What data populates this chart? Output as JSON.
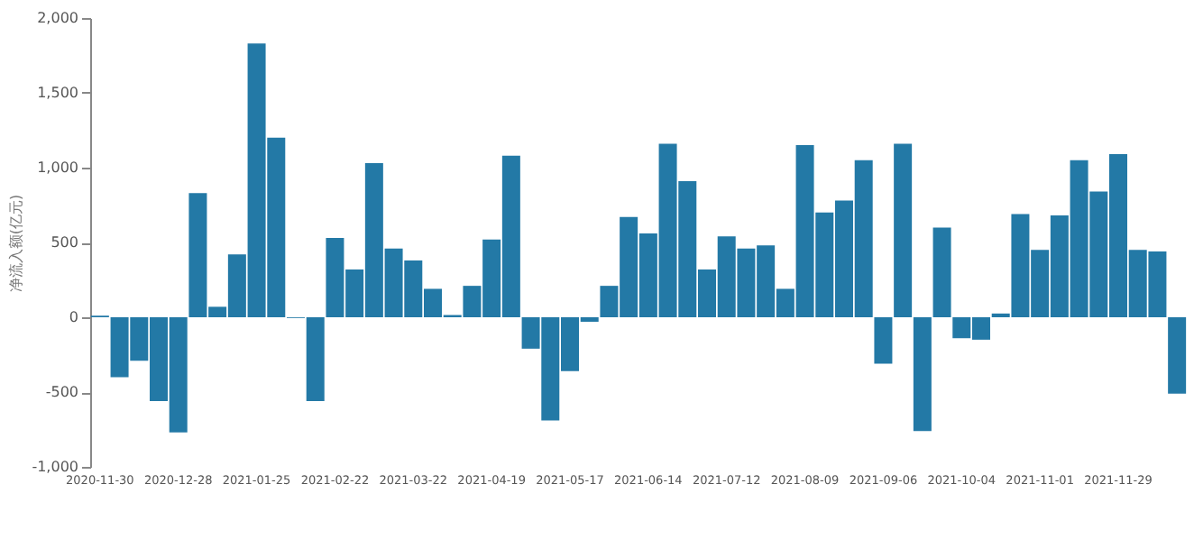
{
  "chart_data": {
    "type": "bar",
    "ylabel": "净流入额(亿元)",
    "categories": [
      "2020-11-30",
      null,
      null,
      null,
      "2020-12-28",
      null,
      null,
      null,
      "2021-01-25",
      null,
      null,
      null,
      "2021-02-22",
      null,
      null,
      null,
      "2021-03-22",
      null,
      null,
      null,
      "2021-04-19",
      null,
      null,
      null,
      "2021-05-17",
      null,
      null,
      null,
      "2021-06-14",
      null,
      null,
      null,
      "2021-07-12",
      null,
      null,
      null,
      "2021-08-09",
      null,
      null,
      null,
      "2021-09-06",
      null,
      null,
      null,
      "2021-10-04",
      null,
      null,
      null,
      "2021-11-01",
      null,
      null,
      null,
      "2021-11-29",
      null,
      null,
      null
    ],
    "values": [
      10,
      -400,
      -290,
      -560,
      -770,
      830,
      70,
      420,
      1830,
      1200,
      -5,
      -560,
      530,
      320,
      1030,
      460,
      380,
      190,
      15,
      210,
      520,
      1080,
      -210,
      -690,
      -360,
      -30,
      210,
      670,
      560,
      1160,
      910,
      320,
      540,
      460,
      480,
      190,
      1150,
      700,
      780,
      1050,
      -310,
      1160,
      -760,
      600,
      -140,
      -150,
      25,
      690,
      450,
      680,
      1050,
      840,
      1090,
      450,
      440,
      -510
    ],
    "color": "#2379a6",
    "ylim": [
      -1000,
      2000
    ],
    "yticks": [
      {
        "value": -1000,
        "label": "-1,000"
      },
      -500,
      0,
      500,
      {
        "value": 1000,
        "label": "1,000"
      },
      {
        "value": 1500,
        "label": "1,500"
      },
      {
        "value": 2000,
        "label": "2,000"
      }
    ],
    "grid": false
  }
}
